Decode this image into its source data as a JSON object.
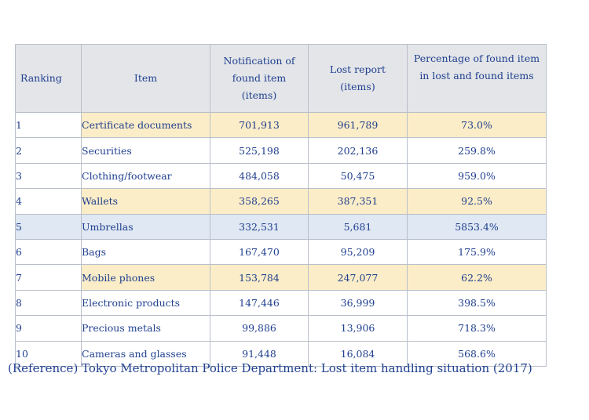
{
  "table": {
    "headers": {
      "ranking": "Ranking",
      "item": "Item",
      "notification_line1": "Notification of",
      "notification_line2": "found item",
      "notification_line3": "(items)",
      "lost_line1": "Lost report",
      "lost_line2": "(items)",
      "percentage_line1": "Percentage of found item",
      "percentage_line2": "in lost and found items"
    },
    "rows": [
      {
        "rank": "1",
        "item": "Certificate documents",
        "found": "701,913",
        "lost": "961,789",
        "pct": "73.0%"
      },
      {
        "rank": "2",
        "item": "Securities",
        "found": "525,198",
        "lost": "202,136",
        "pct": "259.8%"
      },
      {
        "rank": "3",
        "item": "Clothing/footwear",
        "found": "484,058",
        "lost": "50,475",
        "pct": "959.0%"
      },
      {
        "rank": "4",
        "item": "Wallets",
        "found": "358,265",
        "lost": "387,351",
        "pct": "92.5%"
      },
      {
        "rank": "5",
        "item": "Umbrellas",
        "found": "332,531",
        "lost": "5,681",
        "pct": "5853.4%"
      },
      {
        "rank": "6",
        "item": "Bags",
        "found": "167,470",
        "lost": "95,209",
        "pct": "175.9%"
      },
      {
        "rank": "7",
        "item": "Mobile phones",
        "found": "153,784",
        "lost": "247,077",
        "pct": "62.2%"
      },
      {
        "rank": "8",
        "item": "Electronic products",
        "found": "147,446",
        "lost": "36,999",
        "pct": "398.5%"
      },
      {
        "rank": "9",
        "item": "Precious metals",
        "found": "99,886",
        "lost": "13,906",
        "pct": "718.3%"
      },
      {
        "rank": "10",
        "item": "Cameras and glasses",
        "found": "91,448",
        "lost": "16,084",
        "pct": "568.6%"
      }
    ]
  },
  "colors": {
    "text": "#1f3f8f",
    "header_bg": "#e3e5e8",
    "highlight_yellow": "#fbedc7",
    "highlight_blue": "#dfe8f3",
    "border": "#b9bfc9"
  },
  "reference": "(Reference) Tokyo Metropolitan Police Department: Lost item handling situation (2017)"
}
